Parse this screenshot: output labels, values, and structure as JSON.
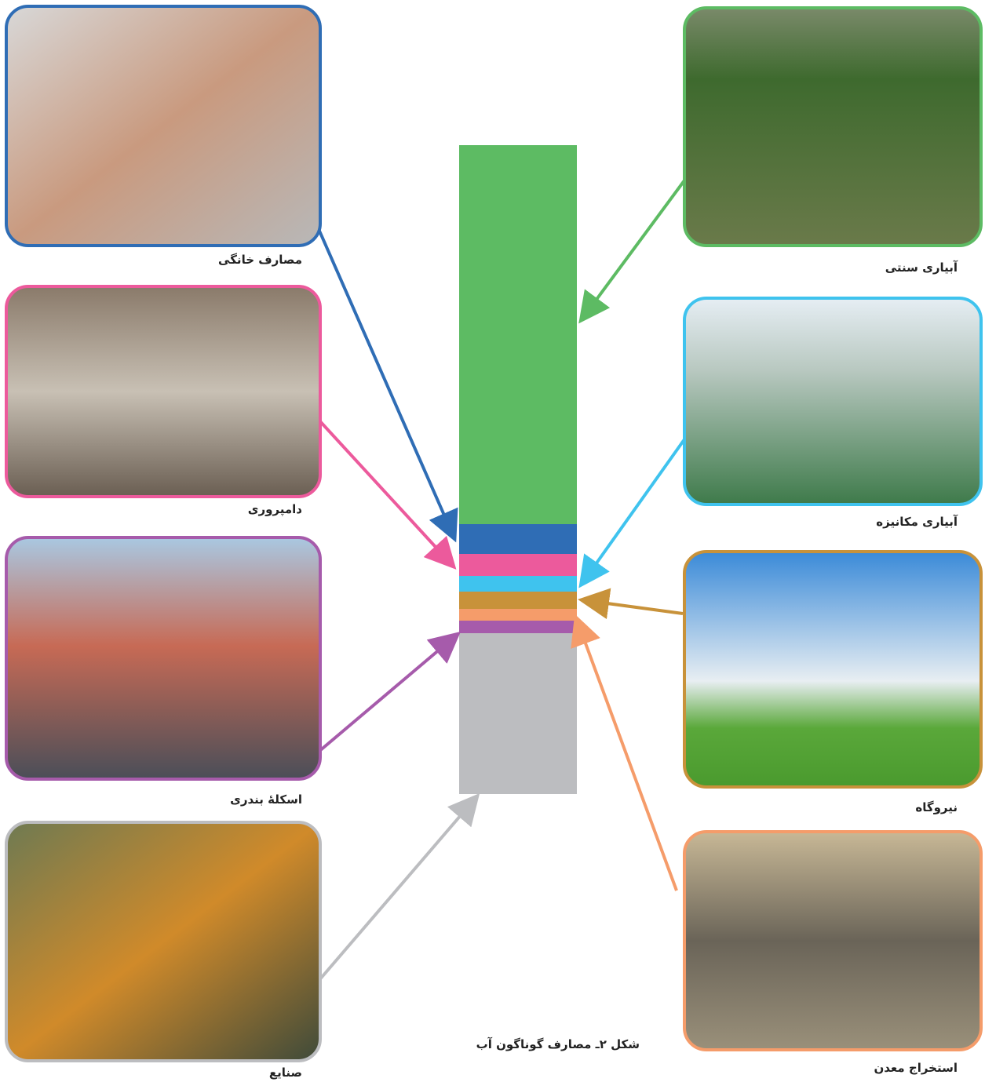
{
  "caption": "شکل ۲ـ مصارف گوناگون آب",
  "left": [
    {
      "label": "مصارف خانگی"
    },
    {
      "label": "دامپروری"
    },
    {
      "label": "اسکلهٔ بندری"
    },
    {
      "label": "صنایع"
    }
  ],
  "right": [
    {
      "label": "آبیاری سنتی"
    },
    {
      "label": "آبیاری مکانیزه"
    },
    {
      "label": "نیروگاه"
    },
    {
      "label": "استخراج معدن"
    }
  ]
}
